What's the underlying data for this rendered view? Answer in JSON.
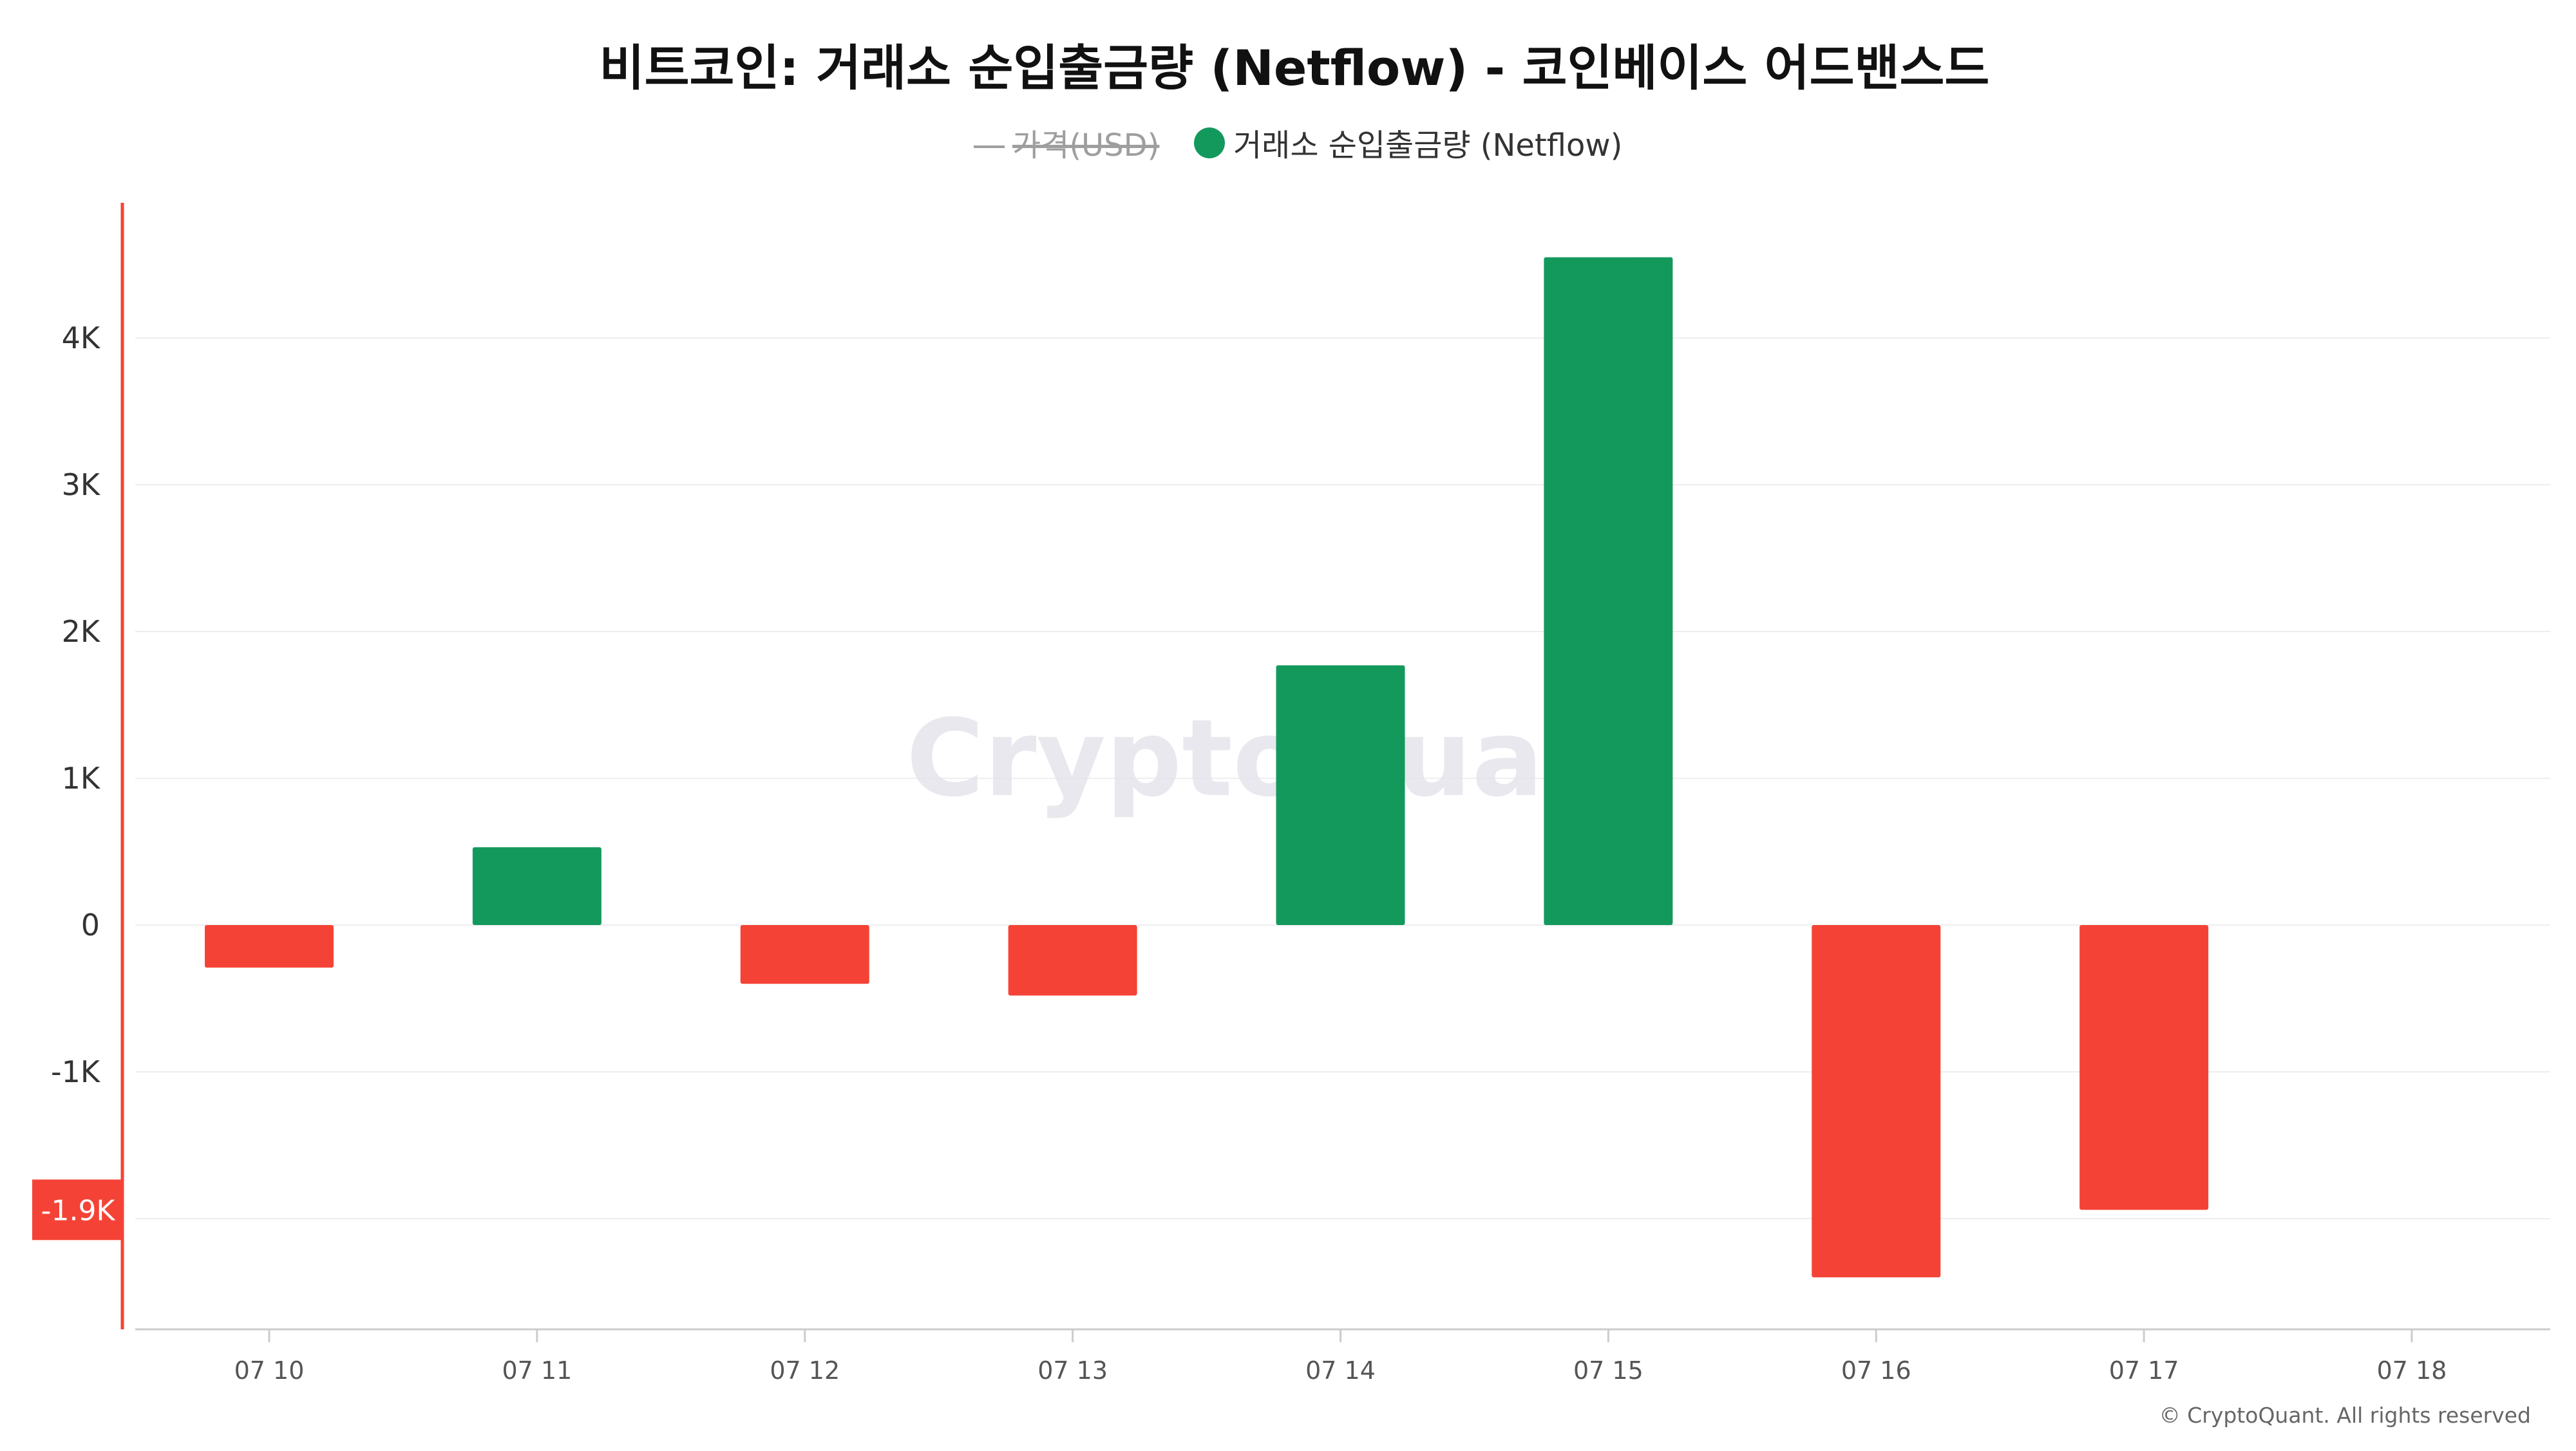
{
  "chart_data": {
    "type": "bar",
    "title": "비트코인: 거래소 순입출금량 (Netflow) - 코인베이스 어드밴스드",
    "legend": {
      "placement": "top-center",
      "items": [
        {
          "label": "가격(USD)",
          "state": "hidden",
          "symbol": "line"
        },
        {
          "label": "거래소 순입출금량 (Netflow)",
          "state": "visible",
          "symbol": "circle",
          "color": "#14995d"
        }
      ]
    },
    "categories": [
      "07 10",
      "07 11",
      "07 12",
      "07 13",
      "07 14",
      "07 15",
      "07 16",
      "07 17",
      "07 18"
    ],
    "series": [
      {
        "name": "거래소 순입출금량 (Netflow)",
        "values": [
          -290,
          530,
          -400,
          -480,
          1770,
          4550,
          -2400,
          -1940,
          null
        ]
      }
    ],
    "y_ticks": [
      {
        "value": 4000,
        "label": "4K"
      },
      {
        "value": 3000,
        "label": "3K"
      },
      {
        "value": 2000,
        "label": "2K"
      },
      {
        "value": 1000,
        "label": "1K"
      },
      {
        "value": 0,
        "label": "0"
      },
      {
        "value": -1000,
        "label": "-1K"
      },
      {
        "value": -2000,
        "label": ""
      }
    ],
    "ylim": [
      -2750,
      4900
    ],
    "current_value_marker": {
      "value": -1940,
      "label": "-1.9K",
      "color": "#f44336"
    },
    "colors": {
      "positive": "#14995d",
      "negative": "#f44336",
      "axis_accent": "#f44336",
      "grid": "#eeeeee"
    },
    "grid": true,
    "watermark": "CryptoQuant",
    "copyright": "© CryptoQuant. All rights reserved",
    "xlabel": "",
    "ylabel": ""
  }
}
